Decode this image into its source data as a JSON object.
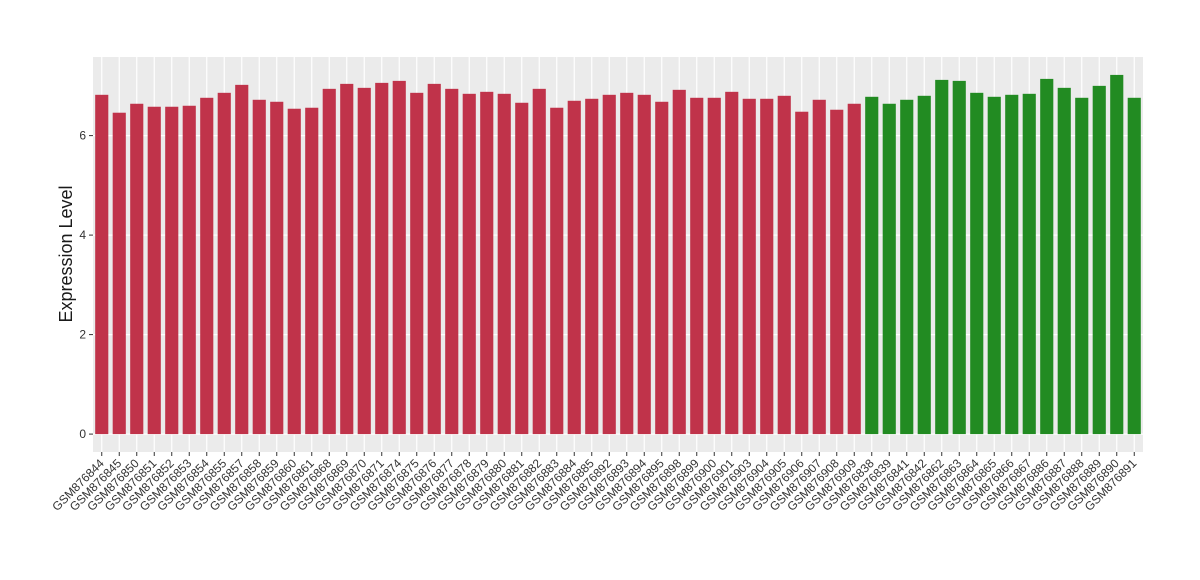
{
  "chart_data": {
    "type": "bar",
    "y_label": "Expression Level",
    "categories": [
      "GSM876844",
      "GSM876845",
      "GSM876850",
      "GSM876851",
      "GSM876852",
      "GSM876853",
      "GSM876854",
      "GSM876855",
      "GSM876857",
      "GSM876858",
      "GSM876859",
      "GSM876860",
      "GSM876861",
      "GSM876868",
      "GSM876869",
      "GSM876870",
      "GSM876871",
      "GSM876874",
      "GSM876875",
      "GSM876876",
      "GSM876877",
      "GSM876878",
      "GSM876879",
      "GSM876880",
      "GSM876881",
      "GSM876882",
      "GSM876883",
      "GSM876884",
      "GSM876885",
      "GSM876892",
      "GSM876893",
      "GSM876894",
      "GSM876895",
      "GSM876898",
      "GSM876899",
      "GSM876900",
      "GSM876901",
      "GSM876903",
      "GSM876904",
      "GSM876905",
      "GSM876906",
      "GSM876907",
      "GSM876908",
      "GSM876909",
      "GSM876838",
      "GSM876839",
      "GSM876841",
      "GSM876842",
      "GSM876862",
      "GSM876863",
      "GSM876864",
      "GSM876865",
      "GSM876866",
      "GSM876867",
      "GSM876886",
      "GSM876887",
      "GSM876888",
      "GSM876889",
      "GSM876890",
      "GSM876891"
    ],
    "values": [
      6.82,
      6.46,
      6.64,
      6.58,
      6.58,
      6.6,
      6.76,
      6.86,
      7.02,
      6.72,
      6.68,
      6.54,
      6.56,
      6.94,
      7.04,
      6.96,
      7.06,
      7.1,
      6.86,
      7.04,
      6.94,
      6.84,
      6.88,
      6.84,
      6.66,
      6.94,
      6.56,
      6.7,
      6.74,
      6.82,
      6.86,
      6.82,
      6.68,
      6.92,
      6.76,
      6.76,
      6.88,
      6.74,
      6.74,
      6.8,
      6.48,
      6.72,
      6.52,
      6.64,
      6.78,
      6.64,
      6.72,
      6.8,
      7.12,
      7.1,
      6.86,
      6.78,
      6.82,
      6.84,
      7.14,
      6.96,
      6.76,
      7.0,
      7.22,
      6.76
    ],
    "colors": [
      "#c0334a",
      "#c0334a",
      "#c0334a",
      "#c0334a",
      "#c0334a",
      "#c0334a",
      "#c0334a",
      "#c0334a",
      "#c0334a",
      "#c0334a",
      "#c0334a",
      "#c0334a",
      "#c0334a",
      "#c0334a",
      "#c0334a",
      "#c0334a",
      "#c0334a",
      "#c0334a",
      "#c0334a",
      "#c0334a",
      "#c0334a",
      "#c0334a",
      "#c0334a",
      "#c0334a",
      "#c0334a",
      "#c0334a",
      "#c0334a",
      "#c0334a",
      "#c0334a",
      "#c0334a",
      "#c0334a",
      "#c0334a",
      "#c0334a",
      "#c0334a",
      "#c0334a",
      "#c0334a",
      "#c0334a",
      "#c0334a",
      "#c0334a",
      "#c0334a",
      "#c0334a",
      "#c0334a",
      "#c0334a",
      "#c0334a",
      "#228b22",
      "#228b22",
      "#228b22",
      "#228b22",
      "#228b22",
      "#228b22",
      "#228b22",
      "#228b22",
      "#228b22",
      "#228b22",
      "#228b22",
      "#228b22",
      "#228b22",
      "#228b22",
      "#228b22",
      "#228b22"
    ],
    "ylim": [
      -0.36,
      7.58
    ],
    "yticks": [
      0,
      2,
      4,
      6
    ],
    "grid": true
  }
}
